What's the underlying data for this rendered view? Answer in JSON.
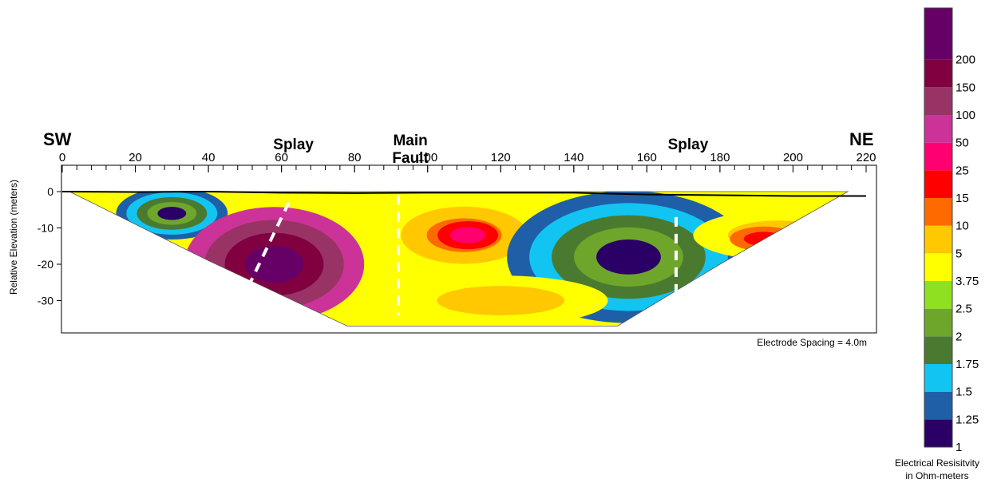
{
  "chart_data": {
    "type": "heatmap",
    "title": "",
    "xlabel": "",
    "ylabel": "Relative Elevation (meters)",
    "xlim": [
      0,
      220
    ],
    "ylim": [
      -37,
      0
    ],
    "x_ticks": [
      0,
      20,
      40,
      60,
      80,
      100,
      120,
      140,
      160,
      180,
      200,
      220
    ],
    "y_ticks": [
      0,
      -10,
      -20,
      -30
    ],
    "ends": {
      "left": "SW",
      "right": "NE"
    },
    "annotations": [
      {
        "text": "Splay",
        "x": 60
      },
      {
        "text": "Main\nFault",
        "x": 92
      },
      {
        "text": "Splay",
        "x": 168
      }
    ],
    "fault_lines": [
      {
        "name": "Splay",
        "top": [
          62,
          -3
        ],
        "bottom": [
          51,
          -26
        ]
      },
      {
        "name": "Main Fault",
        "top": [
          92,
          -1
        ],
        "bottom": [
          92,
          -34
        ]
      },
      {
        "name": "Splay",
        "top": [
          168,
          -7
        ],
        "bottom": [
          168,
          -28
        ]
      }
    ],
    "surface_profile": [
      [
        0,
        0
      ],
      [
        20,
        -0.1
      ],
      [
        40,
        0
      ],
      [
        60,
        -0.3
      ],
      [
        80,
        -0.4
      ],
      [
        100,
        -0.3
      ],
      [
        120,
        -0.3
      ],
      [
        140,
        -0.3
      ],
      [
        160,
        -0.8
      ],
      [
        180,
        -1
      ],
      [
        200,
        -1.2
      ],
      [
        220,
        -1.2
      ]
    ],
    "section_outline": [
      [
        2,
        0
      ],
      [
        215,
        0
      ],
      [
        180,
        -20
      ],
      [
        152,
        -37
      ],
      [
        78,
        -37
      ],
      [
        40,
        -19
      ]
    ],
    "anomalies": [
      {
        "x": 30,
        "y": -6,
        "rx": 12,
        "ry": 5,
        "value": 1
      },
      {
        "x": 58,
        "y": -20,
        "rx": 22,
        "ry": 14,
        "value": 200
      },
      {
        "x": 110,
        "y": -12,
        "rx": 16,
        "ry": 7,
        "value": 10
      },
      {
        "x": 111,
        "y": -12,
        "rx": 7,
        "ry": 3,
        "value": 25
      },
      {
        "x": 155,
        "y": -18,
        "rx": 30,
        "ry": 16,
        "value": 1
      },
      {
        "x": 196,
        "y": -12,
        "rx": 22,
        "ry": 6,
        "value": 5
      },
      {
        "x": 192,
        "y": -13,
        "rx": 8,
        "ry": 2.5,
        "value": 15
      },
      {
        "x": 120,
        "y": -30,
        "rx": 28,
        "ry": 6,
        "value": 5
      }
    ],
    "note": "Electrode Spacing = 4.0m",
    "colorbar": {
      "title": "Electrical Resisitvity\nin Ohm-meters",
      "levels": [
        "1",
        "1.25",
        "1.5",
        "1.75",
        "2",
        "2.5",
        "3.75",
        "5",
        "10",
        "15",
        "25",
        "50",
        "100",
        "150",
        "200"
      ],
      "colors": [
        "#2a0066",
        "#1e5fa8",
        "#12c4f2",
        "#4a7a30",
        "#6ea62c",
        "#8fe020",
        "#ffff00",
        "#ffc800",
        "#ff6a00",
        "#ff0000",
        "#ff0070",
        "#cc3399",
        "#993366",
        "#800040",
        "#660066"
      ]
    }
  }
}
